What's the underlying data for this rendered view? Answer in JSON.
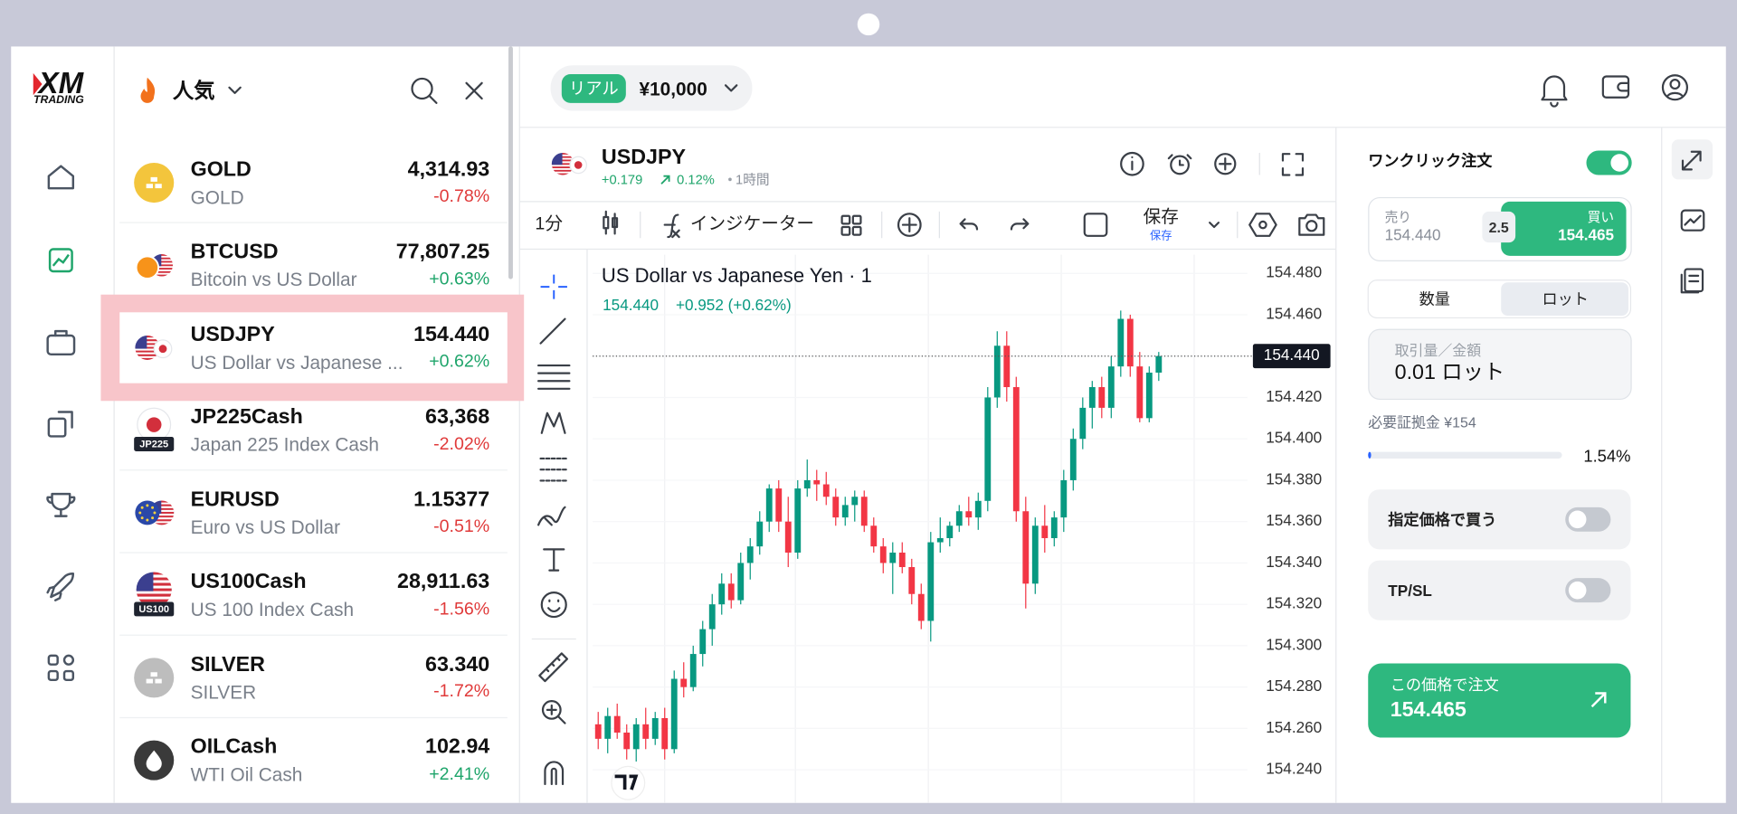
{
  "logo": {
    "brand": "XM",
    "sub": "TRADING"
  },
  "watchlist": {
    "title": "人気",
    "items": [
      {
        "symbol": "GOLD",
        "description": "GOLD",
        "price": "4,314.93",
        "change": "-0.78%"
      },
      {
        "symbol": "BTCUSD",
        "description": "Bitcoin vs US Dollar",
        "price": "77,807.25",
        "change": "+0.63%"
      },
      {
        "symbol": "USDJPY",
        "description": "US Dollar vs Japanese ...",
        "price": "154.440",
        "change": "+0.62%"
      },
      {
        "symbol": "JP225Cash",
        "description": "Japan 225 Index Cash",
        "price": "63,368",
        "change": "-2.02%",
        "badge": "JP225"
      },
      {
        "symbol": "EURUSD",
        "description": "Euro vs US Dollar",
        "price": "1.15377",
        "change": "-0.51%"
      },
      {
        "symbol": "US100Cash",
        "description": "US 100 Index Cash",
        "price": "28,911.63",
        "change": "-1.56%",
        "badge": "US100"
      },
      {
        "symbol": "SILVER",
        "description": "SILVER",
        "price": "63.340",
        "change": "-1.72%"
      },
      {
        "symbol": "OILCash",
        "description": "WTI Oil Cash",
        "price": "102.94",
        "change": "+2.41%"
      }
    ]
  },
  "account": {
    "type": "リアル",
    "balance": "¥10,000"
  },
  "instrument": {
    "symbol": "USDJPY",
    "change": "+0.179",
    "change_pct": "0.12%",
    "timeframe": "1時間"
  },
  "toolbar": {
    "interval": "1分",
    "indicators": "インジケーター",
    "save": "保存",
    "save_sub": "保存"
  },
  "chart_data": {
    "type": "candlestick",
    "title": "US Dollar vs Japanese Yen · 1",
    "legend_price": "154.440",
    "legend_change": "+0.952 (+0.62%)",
    "up_color": "#089981",
    "down_color": "#f23645",
    "grid": true,
    "ylim": [
      154.224,
      154.489
    ],
    "yticks": [
      {
        "value": 154.24,
        "label": "154.240"
      },
      {
        "value": 154.26,
        "label": "154.260"
      },
      {
        "value": 154.28,
        "label": "154.280"
      },
      {
        "value": 154.3,
        "label": "154.300"
      },
      {
        "value": 154.32,
        "label": "154.320"
      },
      {
        "value": 154.34,
        "label": "154.340"
      },
      {
        "value": 154.36,
        "label": "154.360"
      },
      {
        "value": 154.38,
        "label": "154.380"
      },
      {
        "value": 154.4,
        "label": "154.400"
      },
      {
        "value": 154.42,
        "label": "154.420"
      },
      {
        "value": 154.44,
        "label": "154.440"
      },
      {
        "value": 154.46,
        "label": "154.460"
      },
      {
        "value": 154.48,
        "label": "154.480"
      }
    ],
    "last_price": {
      "value": 154.44,
      "label": "154.440"
    },
    "ohlc": [
      [
        154.262,
        154.268,
        154.25,
        154.255
      ],
      [
        154.255,
        154.27,
        154.248,
        154.266
      ],
      [
        154.266,
        154.272,
        154.255,
        154.258
      ],
      [
        154.258,
        154.262,
        154.245,
        154.25
      ],
      [
        154.25,
        154.265,
        154.244,
        154.262
      ],
      [
        154.262,
        154.27,
        154.25,
        154.255
      ],
      [
        154.255,
        154.268,
        154.252,
        154.265
      ],
      [
        154.265,
        154.27,
        154.245,
        154.25
      ],
      [
        154.25,
        154.288,
        154.248,
        154.284
      ],
      [
        154.284,
        154.292,
        154.275,
        154.28
      ],
      [
        154.28,
        154.3,
        154.278,
        154.296
      ],
      [
        154.296,
        154.312,
        154.29,
        154.308
      ],
      [
        154.308,
        154.325,
        154.3,
        154.32
      ],
      [
        154.32,
        154.335,
        154.315,
        154.33
      ],
      [
        154.33,
        154.335,
        154.318,
        154.322
      ],
      [
        154.322,
        154.345,
        154.32,
        154.34
      ],
      [
        154.34,
        154.352,
        154.332,
        154.348
      ],
      [
        154.348,
        154.365,
        154.344,
        154.36
      ],
      [
        154.36,
        154.378,
        154.355,
        154.376
      ],
      [
        154.376,
        154.38,
        154.355,
        154.36
      ],
      [
        154.36,
        154.372,
        154.338,
        154.345
      ],
      [
        154.345,
        154.38,
        154.342,
        154.376
      ],
      [
        154.376,
        154.39,
        154.372,
        154.38
      ],
      [
        154.38,
        154.385,
        154.37,
        154.378
      ],
      [
        154.378,
        154.384,
        154.368,
        154.372
      ],
      [
        154.372,
        154.376,
        154.358,
        154.362
      ],
      [
        154.362,
        154.372,
        154.358,
        154.368
      ],
      [
        154.368,
        154.375,
        154.36,
        154.372
      ],
      [
        154.372,
        154.375,
        154.355,
        154.358
      ],
      [
        154.358,
        154.362,
        154.345,
        154.348
      ],
      [
        154.348,
        154.352,
        154.335,
        154.34
      ],
      [
        154.34,
        154.35,
        154.325,
        154.345
      ],
      [
        154.345,
        154.35,
        154.335,
        154.338
      ],
      [
        154.338,
        154.342,
        154.32,
        154.325
      ],
      [
        154.325,
        154.33,
        154.308,
        154.312
      ],
      [
        154.312,
        154.355,
        154.302,
        154.35
      ],
      [
        154.35,
        154.362,
        154.345,
        154.352
      ],
      [
        154.352,
        154.36,
        154.348,
        154.358
      ],
      [
        154.358,
        154.368,
        154.355,
        154.365
      ],
      [
        154.365,
        154.372,
        154.358,
        154.362
      ],
      [
        154.362,
        154.374,
        154.356,
        154.37
      ],
      [
        154.37,
        154.425,
        154.365,
        154.42
      ],
      [
        154.42,
        154.452,
        154.415,
        154.445
      ],
      [
        154.445,
        154.452,
        154.418,
        154.425
      ],
      [
        154.425,
        154.43,
        154.36,
        154.365
      ],
      [
        154.365,
        154.372,
        154.318,
        154.33
      ],
      [
        154.33,
        154.362,
        154.325,
        154.358
      ],
      [
        154.358,
        154.368,
        154.345,
        154.352
      ],
      [
        154.352,
        154.365,
        154.348,
        154.362
      ],
      [
        154.362,
        154.385,
        154.355,
        154.38
      ],
      [
        154.38,
        154.405,
        154.375,
        154.4
      ],
      [
        154.4,
        154.42,
        154.395,
        154.415
      ],
      [
        154.415,
        154.428,
        154.405,
        154.425
      ],
      [
        154.425,
        154.43,
        154.41,
        154.415
      ],
      [
        154.415,
        154.44,
        154.41,
        154.435
      ],
      [
        154.435,
        154.462,
        154.43,
        154.458
      ],
      [
        154.458,
        154.46,
        154.43,
        154.435
      ],
      [
        154.435,
        154.442,
        154.408,
        154.41
      ],
      [
        154.41,
        154.435,
        154.408,
        154.432
      ],
      [
        154.432,
        154.442,
        154.428,
        154.44
      ]
    ]
  },
  "order_panel": {
    "one_click": "ワンクリック注文",
    "sell": {
      "label": "売り",
      "price": "154.440"
    },
    "spread": "2.5",
    "buy": {
      "label": "買い",
      "price": "154.465"
    },
    "tabs": [
      "数量",
      "ロット"
    ],
    "volume": {
      "label": "取引量／金額",
      "value": "0.01 ロット"
    },
    "margin": "必要証拠金 ¥154",
    "margin_level": {
      "value": 1.54,
      "label": "1.54%"
    },
    "limit_buy": "指定価格で買う",
    "tp_sl": "TP/SL",
    "button": {
      "label": "この価格で注文",
      "price": "154.465"
    }
  }
}
